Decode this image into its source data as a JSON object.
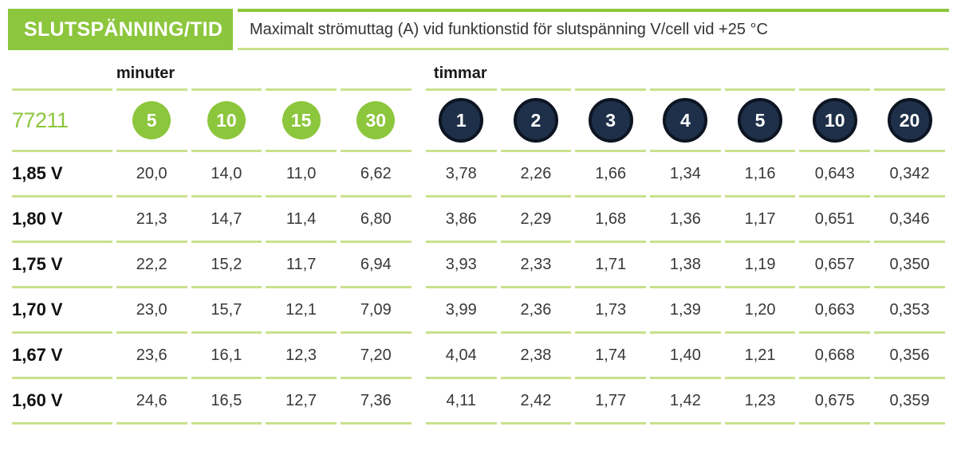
{
  "header": {
    "title": "SLUTSPÄNNING/TID",
    "subtitle": "Maximalt strömuttag (A) vid funktionstid för slutspänning V/cell vid +25 °C"
  },
  "table": {
    "product_code": "77211",
    "groups": [
      {
        "label": "minuter",
        "circle_style": "green",
        "columns": [
          "5",
          "10",
          "15",
          "30"
        ]
      },
      {
        "label": "timmar",
        "circle_style": "dark-navy",
        "columns": [
          "1",
          "2",
          "3",
          "4",
          "5",
          "10",
          "20"
        ]
      }
    ],
    "rows": [
      {
        "label": "1,85 V",
        "minutes": [
          "20,0",
          "14,0",
          "11,0",
          "6,62"
        ],
        "hours": [
          "3,78",
          "2,26",
          "1,66",
          "1,34",
          "1,16",
          "0,643",
          "0,342"
        ]
      },
      {
        "label": "1,80 V",
        "minutes": [
          "21,3",
          "14,7",
          "11,4",
          "6,80"
        ],
        "hours": [
          "3,86",
          "2,29",
          "1,68",
          "1,36",
          "1,17",
          "0,651",
          "0,346"
        ]
      },
      {
        "label": "1,75 V",
        "minutes": [
          "22,2",
          "15,2",
          "11,7",
          "6,94"
        ],
        "hours": [
          "3,93",
          "2,33",
          "1,71",
          "1,38",
          "1,19",
          "0,657",
          "0,350"
        ]
      },
      {
        "label": "1,70 V",
        "minutes": [
          "23,0",
          "15,7",
          "12,1",
          "7,09"
        ],
        "hours": [
          "3,99",
          "2,36",
          "1,73",
          "1,39",
          "1,20",
          "0,663",
          "0,353"
        ]
      },
      {
        "label": "1,67 V",
        "minutes": [
          "23,6",
          "16,1",
          "12,3",
          "7,20"
        ],
        "hours": [
          "4,04",
          "2,38",
          "1,74",
          "1,40",
          "1,21",
          "0,668",
          "0,356"
        ]
      },
      {
        "label": "1,60 V",
        "minutes": [
          "24,6",
          "16,5",
          "12,7",
          "7,36"
        ],
        "hours": [
          "4,11",
          "2,42",
          "1,77",
          "1,42",
          "1,23",
          "0,675",
          "0,359"
        ]
      }
    ]
  },
  "colors": {
    "accent_green": "#8cc63c",
    "line_green": "#c9e18c",
    "circle_dark_navy": "#1e3049",
    "circle_dark_ring": "#0d1522",
    "text_dark": "#333333"
  }
}
